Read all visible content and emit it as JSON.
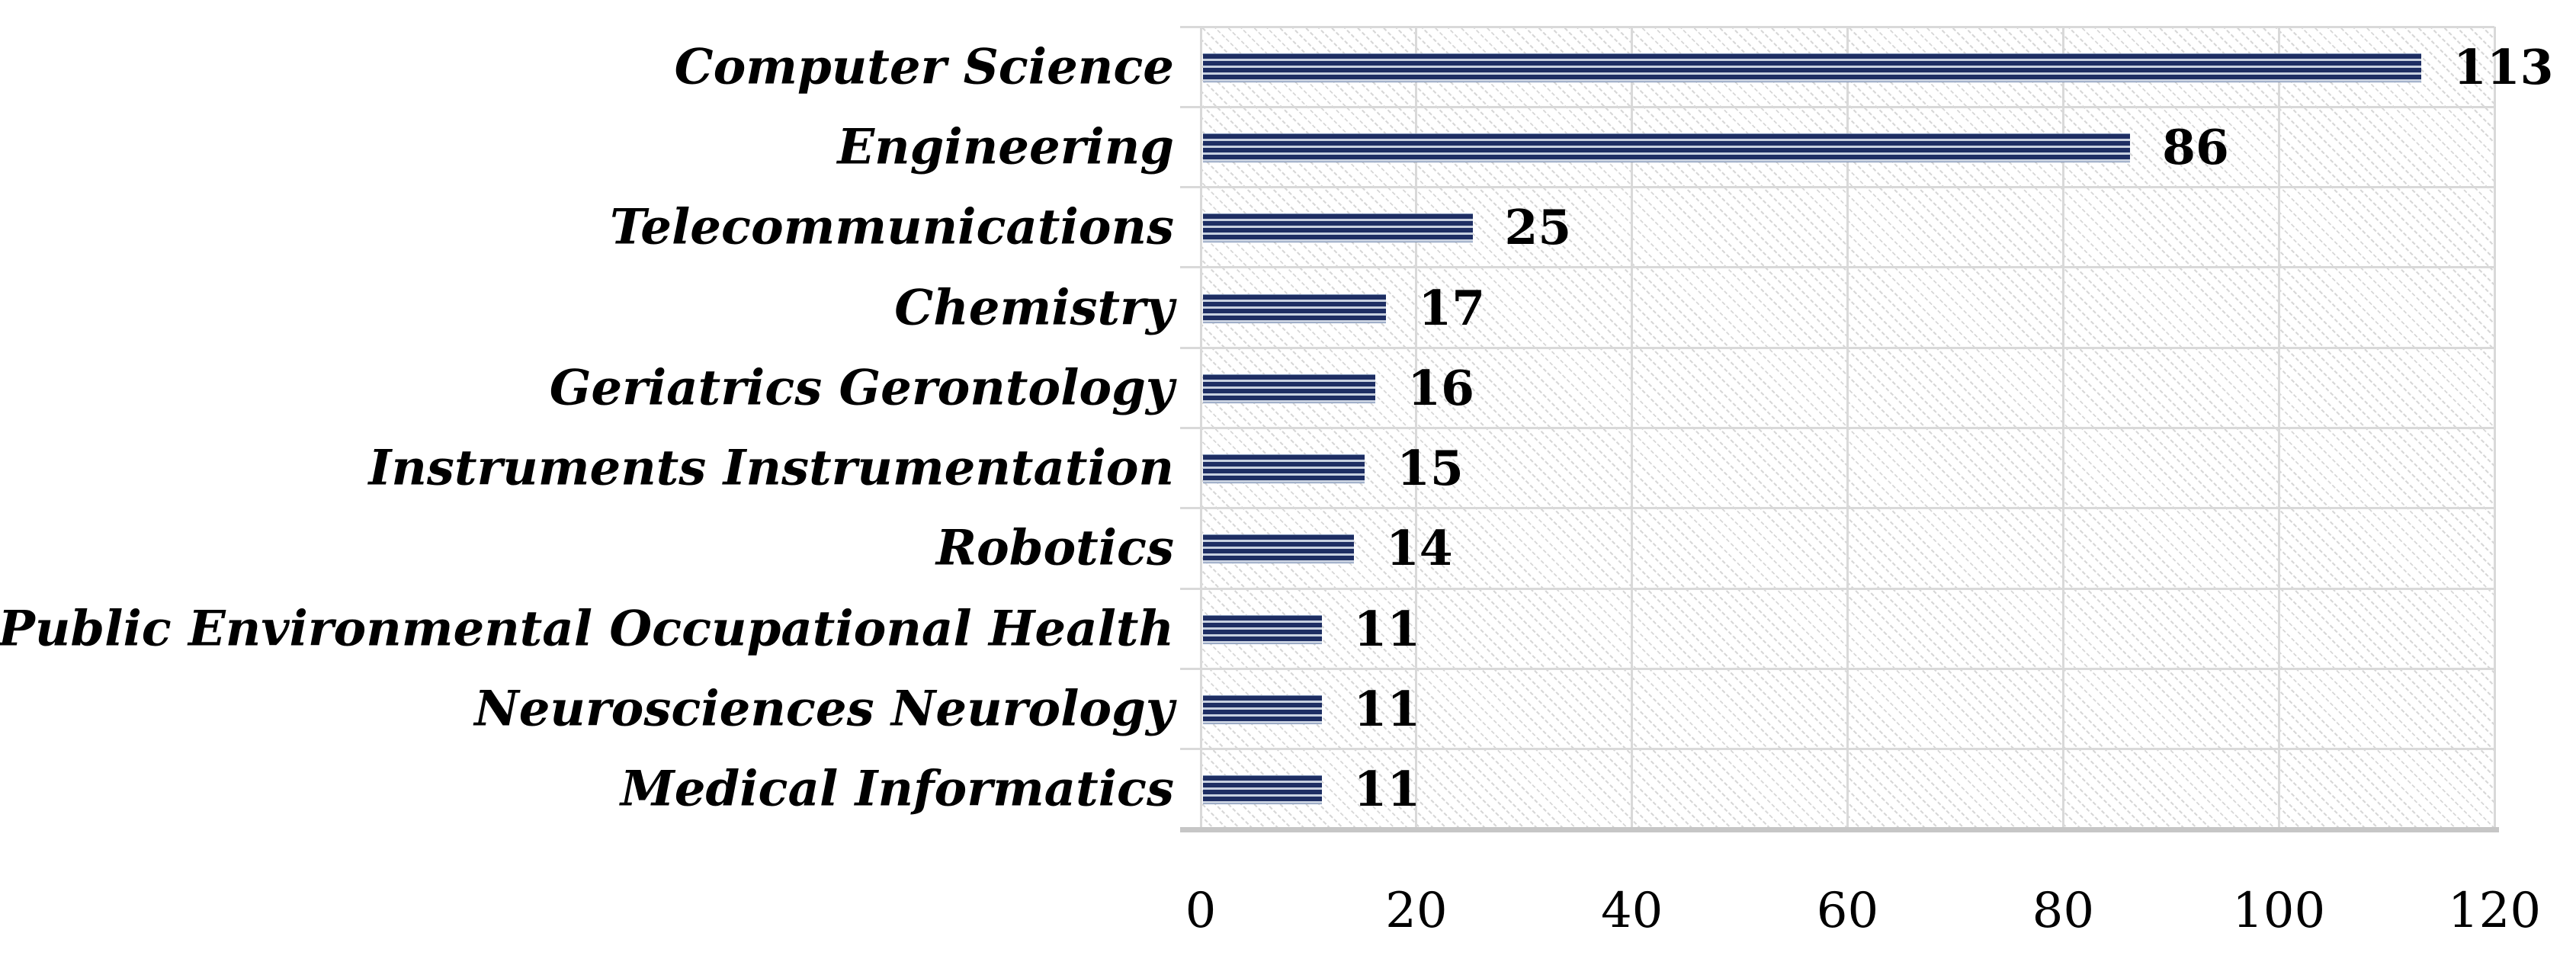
{
  "chart_data": {
    "type": "bar",
    "orientation": "horizontal",
    "title": "",
    "xlabel": "",
    "ylabel": "",
    "categories": [
      "Computer Science",
      "Engineering",
      "Telecommunications",
      "Chemistry",
      "Geriatrics Gerontology",
      "Instruments Instrumentation",
      "Robotics",
      "Public Environmental Occupational Health",
      "Neurosciences Neurology",
      "Medical Informatics"
    ],
    "values": [
      113,
      86,
      25,
      17,
      16,
      15,
      14,
      11,
      11,
      11
    ],
    "data_labels": [
      "113",
      "86",
      "25",
      "17",
      "16",
      "15",
      "14",
      "11",
      "11",
      "11"
    ],
    "xlim": [
      0,
      120
    ],
    "xticks": [
      "0",
      "20",
      "40",
      "60",
      "80",
      "100",
      "120"
    ],
    "xtick_values": [
      0,
      20,
      40,
      60,
      80,
      100,
      120
    ],
    "grid": true,
    "legend": false,
    "colors": {
      "bar_stripe_dark": "#1e2e63",
      "bar_stripe_light": "#c7d0df",
      "plot_hatch": "#d7d7d7",
      "gridline": "#d9d9d9",
      "axis_line": "#c6c6c6",
      "text": "#000000",
      "background": "#ffffff"
    },
    "bar_fill_pattern": "horizontal-stripes",
    "plot_background_pattern": "light-downward-diagonal-hatch"
  }
}
